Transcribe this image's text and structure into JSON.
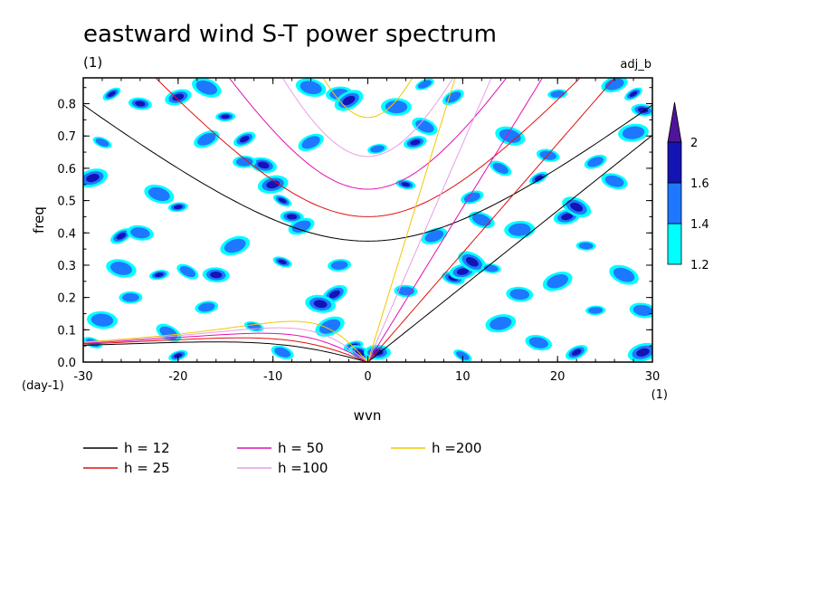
{
  "chart_data": {
    "type": "heatmap",
    "title": "eastward wind S-T power spectrum",
    "subtitle_left": "(1)",
    "subtitle_right": "adj_b",
    "xlabel": "wvn",
    "x_unit": "(1)",
    "ylabel": "freq",
    "y_unit": "(day-1)",
    "xlim": [
      -30,
      30
    ],
    "ylim": [
      0,
      0.88
    ],
    "xticks": [
      -30,
      -20,
      -10,
      0,
      10,
      20,
      30
    ],
    "xtick_labels": [
      "-30",
      "-20",
      "-10",
      "0",
      "10",
      "20",
      "30"
    ],
    "yticks": [
      0,
      0.1,
      0.2,
      0.3,
      0.4,
      0.5,
      0.6,
      0.7,
      0.8
    ],
    "ytick_labels": [
      "0.0",
      "0.1",
      "0.2",
      "0.3",
      "0.4",
      "0.5",
      "0.6",
      "0.7",
      "0.8"
    ],
    "colorbar": {
      "levels": [
        1.2,
        1.4,
        1.6,
        2
      ],
      "labels": [
        "1.2",
        "1.4",
        "1.6",
        "2"
      ],
      "colors": [
        "#00ffff",
        "#1e78ff",
        "#1414b4",
        "#50149a"
      ]
    },
    "contour_blobs": [
      {
        "x": -27,
        "y": 0.83,
        "level": 3
      },
      {
        "x": -24,
        "y": 0.8,
        "level": 3
      },
      {
        "x": -20,
        "y": 0.82,
        "level": 3
      },
      {
        "x": -17,
        "y": 0.85,
        "level": 2
      },
      {
        "x": -15,
        "y": 0.76,
        "level": 3
      },
      {
        "x": -13,
        "y": 0.69,
        "level": 3
      },
      {
        "x": -11,
        "y": 0.61,
        "level": 3
      },
      {
        "x": -10,
        "y": 0.55,
        "level": 3
      },
      {
        "x": -9,
        "y": 0.5,
        "level": 3
      },
      {
        "x": -8,
        "y": 0.45,
        "level": 3
      },
      {
        "x": -7,
        "y": 0.42,
        "level": 2
      },
      {
        "x": -22,
        "y": 0.52,
        "level": 2
      },
      {
        "x": -20,
        "y": 0.48,
        "level": 3
      },
      {
        "x": -26,
        "y": 0.39,
        "level": 3
      },
      {
        "x": -24,
        "y": 0.4,
        "level": 2
      },
      {
        "x": -29,
        "y": 0.57,
        "level": 3
      },
      {
        "x": -28,
        "y": 0.68,
        "level": 2
      },
      {
        "x": -13,
        "y": 0.62,
        "level": 2
      },
      {
        "x": -17,
        "y": 0.69,
        "level": 2
      },
      {
        "x": -26,
        "y": 0.29,
        "level": 2
      },
      {
        "x": -22,
        "y": 0.27,
        "level": 3
      },
      {
        "x": -19,
        "y": 0.28,
        "level": 2
      },
      {
        "x": -16,
        "y": 0.27,
        "level": 3
      },
      {
        "x": -14,
        "y": 0.36,
        "level": 2
      },
      {
        "x": -9,
        "y": 0.31,
        "level": 3
      },
      {
        "x": -3,
        "y": 0.3,
        "level": 2
      },
      {
        "x": -3.5,
        "y": 0.21,
        "level": 3
      },
      {
        "x": -5,
        "y": 0.18,
        "level": 3
      },
      {
        "x": -1.5,
        "y": 0.05,
        "level": 4
      },
      {
        "x": -0.8,
        "y": 0.03,
        "level": 4
      },
      {
        "x": 1.0,
        "y": 0.03,
        "level": 3
      },
      {
        "x": -4,
        "y": 0.11,
        "level": 2
      },
      {
        "x": -12,
        "y": 0.11,
        "level": 2
      },
      {
        "x": -17,
        "y": 0.17,
        "level": 2
      },
      {
        "x": -21,
        "y": 0.09,
        "level": 2
      },
      {
        "x": -28,
        "y": 0.13,
        "level": 2
      },
      {
        "x": -20,
        "y": 0.02,
        "level": 3
      },
      {
        "x": -9,
        "y": 0.03,
        "level": 2
      },
      {
        "x": -3,
        "y": 0.83,
        "level": 2
      },
      {
        "x": -2,
        "y": 0.81,
        "level": 3
      },
      {
        "x": 4,
        "y": 0.55,
        "level": 3
      },
      {
        "x": 5,
        "y": 0.68,
        "level": 3
      },
      {
        "x": 6,
        "y": 0.73,
        "level": 2
      },
      {
        "x": 3,
        "y": 0.79,
        "level": 2
      },
      {
        "x": 6,
        "y": 0.86,
        "level": 2
      },
      {
        "x": 9,
        "y": 0.26,
        "level": 3
      },
      {
        "x": 10,
        "y": 0.28,
        "level": 3
      },
      {
        "x": 11,
        "y": 0.31,
        "level": 3
      },
      {
        "x": 13,
        "y": 0.29,
        "level": 2
      },
      {
        "x": 11,
        "y": 0.51,
        "level": 2
      },
      {
        "x": 12,
        "y": 0.44,
        "level": 2
      },
      {
        "x": 16,
        "y": 0.41,
        "level": 2
      },
      {
        "x": 18,
        "y": 0.57,
        "level": 3
      },
      {
        "x": 19,
        "y": 0.64,
        "level": 2
      },
      {
        "x": 21,
        "y": 0.45,
        "level": 3
      },
      {
        "x": 22,
        "y": 0.48,
        "level": 3
      },
      {
        "x": 23,
        "y": 0.36,
        "level": 2
      },
      {
        "x": 24,
        "y": 0.62,
        "level": 2
      },
      {
        "x": 26,
        "y": 0.56,
        "level": 2
      },
      {
        "x": 28,
        "y": 0.71,
        "level": 2
      },
      {
        "x": 28,
        "y": 0.83,
        "level": 3
      },
      {
        "x": 29,
        "y": 0.78,
        "level": 3
      },
      {
        "x": 26,
        "y": 0.86,
        "level": 2
      },
      {
        "x": 27,
        "y": 0.27,
        "level": 2
      },
      {
        "x": 24,
        "y": 0.16,
        "level": 2
      },
      {
        "x": 22,
        "y": 0.03,
        "level": 3
      },
      {
        "x": 18,
        "y": 0.06,
        "level": 2
      },
      {
        "x": 14,
        "y": 0.12,
        "level": 2
      },
      {
        "x": 10,
        "y": 0.02,
        "level": 2
      },
      {
        "x": 4,
        "y": 0.22,
        "level": 2
      },
      {
        "x": 7,
        "y": 0.39,
        "level": 2
      },
      {
        "x": 15,
        "y": 0.7,
        "level": 2
      },
      {
        "x": 20,
        "y": 0.83,
        "level": 2
      },
      {
        "x": 9,
        "y": 0.82,
        "level": 2
      },
      {
        "x": 29,
        "y": 0.16,
        "level": 2
      },
      {
        "x": 29,
        "y": 0.03,
        "level": 3
      },
      {
        "x": -29,
        "y": 0.06,
        "level": 2
      },
      {
        "x": -25,
        "y": 0.2,
        "level": 2
      },
      {
        "x": -6,
        "y": 0.68,
        "level": 2
      },
      {
        "x": -6,
        "y": 0.85,
        "level": 2
      },
      {
        "x": 1,
        "y": 0.66,
        "level": 2
      },
      {
        "x": 14,
        "y": 0.6,
        "level": 2
      },
      {
        "x": 16,
        "y": 0.21,
        "level": 2
      },
      {
        "x": 20,
        "y": 0.25,
        "level": 2
      }
    ],
    "series": [
      {
        "name": "h = 12",
        "label": "h = 12",
        "color": "#000000",
        "h": 12
      },
      {
        "name": "h = 25",
        "label": "h = 25",
        "color": "#e01010",
        "h": 25
      },
      {
        "name": "h = 50",
        "label": "h = 50",
        "color": "#e010b0",
        "h": 50
      },
      {
        "name": "h =100",
        "label": "h =100",
        "color": "#e69ee6",
        "h": 100
      },
      {
        "name": "h =200",
        "label": "h =200",
        "color": "#f0c800",
        "h": 200
      }
    ]
  }
}
